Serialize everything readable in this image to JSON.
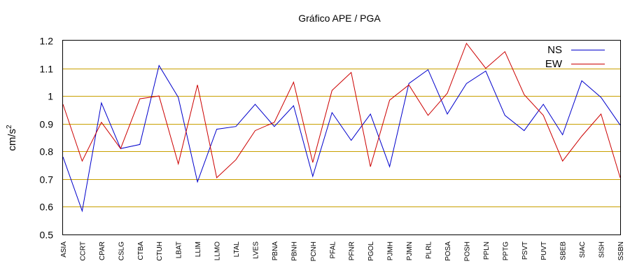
{
  "chart_data": {
    "type": "line",
    "title": "Gráfico  APE / PGA",
    "xlabel": "",
    "ylabel": "cm/s",
    "ylabel_superscript": "2",
    "ylim": [
      0.5,
      1.2
    ],
    "yticks": [
      0.5,
      0.6,
      0.7,
      0.8,
      0.9,
      1,
      1.1,
      1.2
    ],
    "ytick_labels": [
      "0.5",
      "0.6",
      "0.7",
      "0.8",
      "0.9",
      "1",
      "1.1",
      "1.2"
    ],
    "grid": true,
    "legend_position": "top-right",
    "categories": [
      "ASIA",
      "CCRT",
      "CPAR",
      "CSLG",
      "CTBA",
      "CTUH",
      "LBAT",
      "LLIM",
      "LLMO",
      "LTAL",
      "LVES",
      "PBNA",
      "PBNH",
      "PCNH",
      "PFAL",
      "PFNR",
      "PGOL",
      "PJMH",
      "PJMN",
      "PLRL",
      "POSA",
      "POSH",
      "PPLN",
      "PPTG",
      "PSVT",
      "PUVT",
      "SBEB",
      "SIAC",
      "SISH",
      "SSBN"
    ],
    "series": [
      {
        "name": "NS",
        "color": "#0000cc",
        "values": [
          0.78,
          0.585,
          0.975,
          0.81,
          0.825,
          1.11,
          0.995,
          0.69,
          0.88,
          0.89,
          0.97,
          0.89,
          0.965,
          0.71,
          0.94,
          0.84,
          0.935,
          0.745,
          1.045,
          1.095,
          0.935,
          1.045,
          1.09,
          0.93,
          0.875,
          0.97,
          0.86,
          1.055,
          0.995,
          0.895
        ]
      },
      {
        "name": "EW",
        "color": "#cc0000",
        "values": [
          0.97,
          0.765,
          0.905,
          0.81,
          0.99,
          1.0,
          0.755,
          1.04,
          0.705,
          0.77,
          0.875,
          0.905,
          1.05,
          0.76,
          1.02,
          1.085,
          0.745,
          0.985,
          1.04,
          0.93,
          1.01,
          1.19,
          1.1,
          1.16,
          1.005,
          0.93,
          0.765,
          0.855,
          0.935,
          0.705
        ]
      }
    ]
  }
}
